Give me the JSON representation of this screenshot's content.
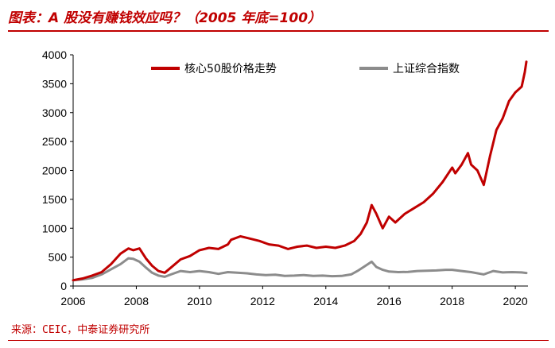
{
  "title": "图表：A 股没有赚钱效应吗？（2005 年底=100）",
  "source": "来源：CEIC，中泰证券研究所",
  "colors": {
    "series1": "#c00000",
    "series2": "#8c8c8c",
    "accent": "#c00000"
  },
  "chart_data": {
    "type": "line",
    "title": "图表：A 股没有赚钱效应吗？（2005 年底=100）",
    "xlabel": "",
    "ylabel": "",
    "xlim": [
      2006,
      2020.4
    ],
    "ylim": [
      0,
      4000
    ],
    "x_ticks": [
      "2006",
      "2008",
      "2010",
      "2012",
      "2014",
      "2016",
      "2018",
      "2020"
    ],
    "y_ticks": [
      "0",
      "500",
      "1000",
      "1500",
      "2000",
      "2500",
      "3000",
      "3500",
      "4000"
    ],
    "grid": false,
    "legend_position": "top",
    "series": [
      {
        "name": "核心50股价格走势",
        "color": "#c00000",
        "x": [
          2006.0,
          2006.3,
          2006.6,
          2006.9,
          2007.2,
          2007.5,
          2007.75,
          2007.9,
          2008.1,
          2008.3,
          2008.5,
          2008.7,
          2008.9,
          2009.1,
          2009.4,
          2009.7,
          2010.0,
          2010.3,
          2010.6,
          2010.9,
          2011.0,
          2011.3,
          2011.6,
          2011.9,
          2012.2,
          2012.5,
          2012.8,
          2013.1,
          2013.4,
          2013.7,
          2014.0,
          2014.3,
          2014.6,
          2014.9,
          2015.1,
          2015.3,
          2015.45,
          2015.6,
          2015.8,
          2016.0,
          2016.2,
          2016.5,
          2016.8,
          2017.1,
          2017.4,
          2017.7,
          2018.0,
          2018.1,
          2018.3,
          2018.5,
          2018.6,
          2018.8,
          2019.0,
          2019.2,
          2019.4,
          2019.6,
          2019.8,
          2020.0,
          2020.2,
          2020.3,
          2020.35
        ],
        "values": [
          100,
          130,
          180,
          240,
          380,
          560,
          650,
          620,
          650,
          480,
          350,
          260,
          230,
          320,
          460,
          520,
          620,
          660,
          640,
          720,
          800,
          860,
          820,
          780,
          720,
          700,
          640,
          680,
          700,
          660,
          680,
          660,
          700,
          780,
          900,
          1100,
          1400,
          1250,
          1000,
          1200,
          1100,
          1250,
          1350,
          1450,
          1600,
          1800,
          2050,
          1950,
          2100,
          2300,
          2100,
          2000,
          1750,
          2250,
          2700,
          2900,
          3200,
          3350,
          3450,
          3700,
          3880
        ]
      },
      {
        "name": "上证综合指数",
        "color": "#8c8c8c",
        "x": [
          2006.0,
          2006.3,
          2006.6,
          2006.9,
          2007.2,
          2007.5,
          2007.75,
          2007.9,
          2008.1,
          2008.3,
          2008.5,
          2008.7,
          2008.9,
          2009.1,
          2009.4,
          2009.7,
          2010.0,
          2010.3,
          2010.6,
          2010.9,
          2011.2,
          2011.5,
          2011.8,
          2012.1,
          2012.4,
          2012.7,
          2013.0,
          2013.3,
          2013.6,
          2013.9,
          2014.2,
          2014.5,
          2014.8,
          2015.0,
          2015.2,
          2015.45,
          2015.6,
          2015.8,
          2016.0,
          2016.3,
          2016.6,
          2016.9,
          2017.2,
          2017.5,
          2017.8,
          2018.0,
          2018.3,
          2018.6,
          2018.9,
          2019.0,
          2019.3,
          2019.6,
          2019.9,
          2020.2,
          2020.35
        ],
        "values": [
          100,
          115,
          140,
          200,
          290,
          380,
          480,
          470,
          420,
          320,
          230,
          180,
          160,
          200,
          260,
          240,
          260,
          240,
          210,
          240,
          230,
          220,
          200,
          190,
          195,
          175,
          180,
          190,
          175,
          180,
          170,
          175,
          200,
          260,
          330,
          420,
          330,
          280,
          250,
          240,
          245,
          260,
          265,
          270,
          280,
          280,
          260,
          240,
          210,
          200,
          260,
          235,
          240,
          235,
          225
        ]
      }
    ]
  }
}
